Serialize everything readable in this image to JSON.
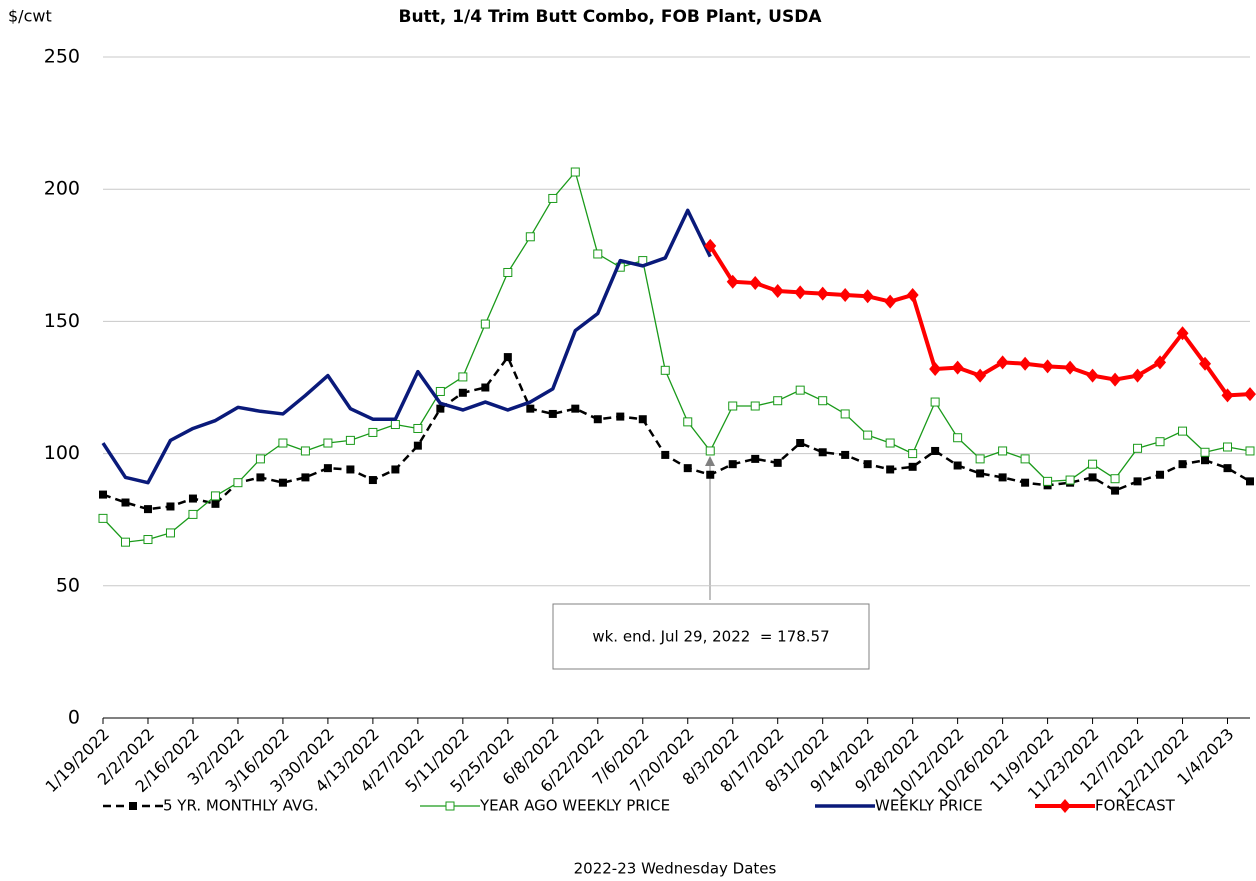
{
  "chart_data": {
    "type": "line",
    "title": "Butt, 1/4 Trim Butt Combo, FOB Plant, USDA",
    "y_label": "$/cwt",
    "x_label": "2022-23 Wednesday Dates",
    "annotation": "wk. end. Jul 29, 2022  = 178.57",
    "categories": [
      "1/19/2022",
      null,
      "2/2/2022",
      null,
      "2/16/2022",
      null,
      "3/2/2022",
      null,
      "3/16/2022",
      null,
      "3/30/2022",
      null,
      "4/13/2022",
      null,
      "4/27/2022",
      null,
      "5/11/2022",
      null,
      "5/25/2022",
      null,
      "6/8/2022",
      null,
      "6/22/2022",
      null,
      "7/6/2022",
      null,
      "7/20/2022",
      null,
      "8/3/2022",
      null,
      "8/17/2022",
      null,
      "8/31/2022",
      null,
      "9/14/2022",
      null,
      "9/28/2022",
      null,
      "10/12/2022",
      null,
      "10/26/2022",
      null,
      "11/9/2022",
      null,
      "11/23/2022",
      null,
      "12/7/2022",
      null,
      "12/21/2022",
      null,
      "1/4/2023",
      null
    ],
    "ylim": [
      0,
      250
    ],
    "yticks": [
      0,
      50,
      100,
      150,
      200,
      250
    ],
    "grid": true,
    "series": [
      {
        "name": "5 YR. MONTHLY AVG.",
        "color": "#000000",
        "dash": "dashed",
        "marker": "square",
        "values": [
          84.5,
          81.5,
          79,
          80,
          83,
          81,
          89,
          91,
          89,
          91,
          94.5,
          94,
          90,
          94,
          103,
          117,
          123,
          125,
          136.5,
          117,
          115,
          117,
          113,
          114,
          113,
          99.5,
          94.5,
          92,
          96,
          98,
          96.5,
          104,
          100.5,
          99.5,
          96,
          94,
          95,
          101,
          95.5,
          92.5,
          91,
          89,
          88,
          89,
          91,
          86,
          89.5,
          92,
          96,
          97.5,
          94.5,
          89.5
        ]
      },
      {
        "name": "YEAR AGO WEEKLY PRICE",
        "color": "#1a9a1a",
        "dash": "solid",
        "marker": "square-open",
        "values": [
          75.5,
          66.5,
          67.5,
          70,
          77,
          84,
          89,
          98,
          104,
          101,
          104,
          105,
          108,
          111,
          109.5,
          123.5,
          129,
          149,
          168.5,
          182,
          196.5,
          206.5,
          175.5,
          170.5,
          173,
          131.5,
          112,
          101,
          118,
          118,
          120,
          124,
          120,
          115,
          107,
          104,
          100,
          119.5,
          106,
          98,
          101,
          98,
          89.5,
          90,
          96,
          90.5,
          102,
          104.5,
          108.5,
          100.5,
          102.5,
          101
        ]
      },
      {
        "name": "WEEKLY PRICE",
        "color": "#0a1a7a",
        "dash": "solid",
        "marker": "none",
        "values": [
          104,
          91,
          89,
          105,
          109.5,
          112.5,
          117.5,
          116,
          115,
          122,
          129.5,
          117,
          113,
          113,
          131,
          119,
          116.5,
          119.5,
          116.5,
          119.5,
          124.5,
          146.5,
          153,
          173,
          171,
          174,
          192,
          174.5,
          null,
          null,
          null,
          null,
          null,
          null,
          null,
          null,
          null,
          null,
          null,
          null,
          null,
          null,
          null,
          null,
          null,
          null,
          null,
          null,
          null,
          null,
          null,
          null
        ]
      },
      {
        "name": "FORECAST",
        "color": "#ff0000",
        "dash": "solid",
        "marker": "diamond",
        "values": [
          null,
          null,
          null,
          null,
          null,
          null,
          null,
          null,
          null,
          null,
          null,
          null,
          null,
          null,
          null,
          null,
          null,
          null,
          null,
          null,
          null,
          null,
          null,
          null,
          null,
          null,
          null,
          178.57,
          165,
          164.5,
          161.5,
          161,
          160.5,
          160,
          159.5,
          157.5,
          160,
          132,
          132.5,
          129.5,
          134.5,
          134,
          133,
          132.5,
          129.5,
          128,
          129.5,
          134.5,
          145.5,
          134,
          122,
          122.5
        ]
      }
    ]
  }
}
